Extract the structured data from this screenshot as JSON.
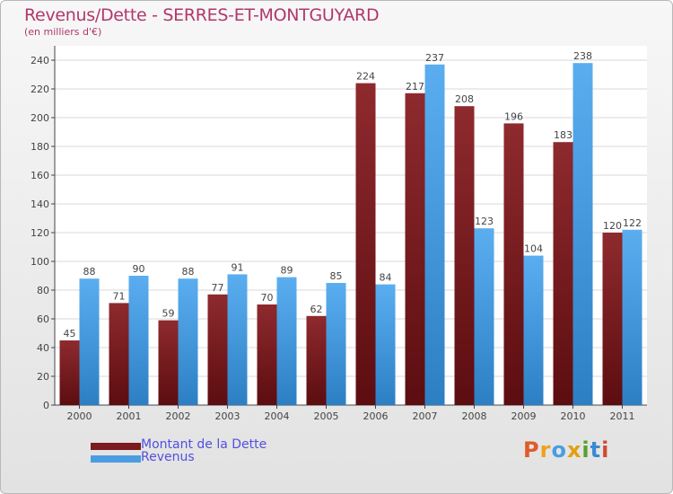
{
  "header": {
    "title": "Revenus/Dette - SERRES-ET-MONTGUYARD",
    "subtitle": "(en milliers d'€)"
  },
  "colors": {
    "dette": "#7a1b1f",
    "revenus": "#4a9de0",
    "title": "#b0386a",
    "legend_text": "#5050e0"
  },
  "chart_data": {
    "type": "bar",
    "categories": [
      "2000",
      "2001",
      "2002",
      "2003",
      "2004",
      "2005",
      "2006",
      "2007",
      "2008",
      "2009",
      "2010",
      "2011"
    ],
    "series": [
      {
        "name": "Montant de la Dette",
        "values": [
          45,
          71,
          59,
          77,
          70,
          62,
          224,
          217,
          208,
          196,
          183,
          120
        ]
      },
      {
        "name": "Revenus",
        "values": [
          88,
          90,
          88,
          91,
          89,
          85,
          84,
          237,
          123,
          104,
          238,
          122
        ]
      }
    ],
    "yticks": [
      0,
      20,
      40,
      60,
      80,
      100,
      120,
      140,
      160,
      180,
      200,
      220,
      240
    ],
    "ylim": [
      0,
      250
    ],
    "grid": true,
    "legend": "bottom-left"
  },
  "logo": {
    "text": "Proxiti",
    "colors": [
      "#e05a2a",
      "#f0a020",
      "#4a9de0",
      "#e0a010",
      "#5aa030",
      "#3a8ad0",
      "#d04a30"
    ]
  }
}
